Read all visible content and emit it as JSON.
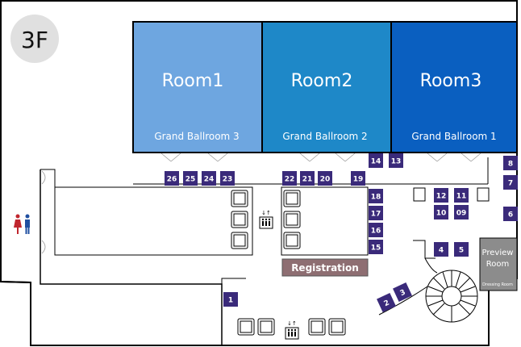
{
  "floor": {
    "label": "3F"
  },
  "rooms": [
    {
      "name": "Room1",
      "subtitle": "Grand Ballroom 3",
      "color": "#6ea6e0"
    },
    {
      "name": "Room2",
      "subtitle": "Grand Ballroom 2",
      "color": "#1e88c8"
    },
    {
      "name": "Room3",
      "subtitle": "Grand Ballroom 1",
      "color": "#0a5fc0"
    }
  ],
  "booths": [
    "1",
    "2",
    "3",
    "4",
    "5",
    "6",
    "7",
    "8",
    "09",
    "10",
    "11",
    "12",
    "13",
    "14",
    "15",
    "16",
    "17",
    "18",
    "19",
    "20",
    "21",
    "22",
    "23",
    "24",
    "25",
    "26"
  ],
  "registration": {
    "label": "Registration",
    "color": "#8e6e72"
  },
  "preview_room": {
    "title_line1": "Preview",
    "title_line2": "Room",
    "subtitle": "Dressing Room",
    "color": "#8c8c8c"
  },
  "colors": {
    "booth": "#3a2a7a",
    "wall": "#000000"
  },
  "icons": [
    "restroom-icon",
    "elevator-icon",
    "spiral-staircase-icon"
  ]
}
